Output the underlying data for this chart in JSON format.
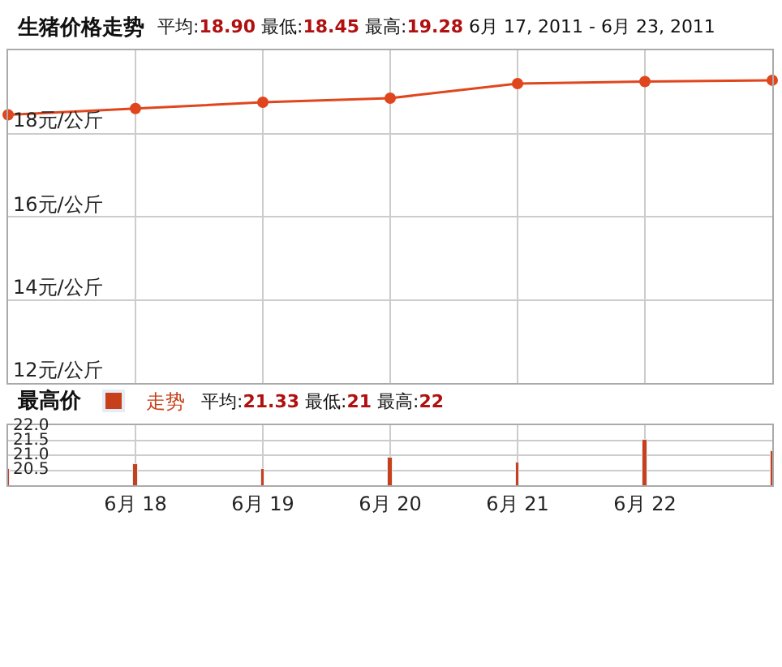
{
  "chart_data": [
    {
      "type": "line",
      "title": "生猪价格走势",
      "subtitle": "平均:18.90 最低:18.45 最高:19.28 6月 17, 2011 - 6月 23, 2011",
      "x": [
        "--06-17",
        "--06-18",
        "--06-19",
        "--06-20",
        "--06-21",
        "--06-22",
        "--06-23"
      ],
      "series": [
        {
          "color": "#e0461e",
          "values": [
            18.45,
            18.6,
            18.75,
            18.85,
            19.2,
            19.25,
            19.28
          ]
        }
      ],
      "xlim": [
        "--06-17",
        "--06-23"
      ],
      "xticks": [
        {
          "value": "--06-18",
          "label": null
        },
        {
          "value": "--06-19",
          "label": null
        },
        {
          "value": "--06-20",
          "label": null
        },
        {
          "value": "--06-21",
          "label": null
        },
        {
          "value": "--06-22",
          "label": null
        }
      ],
      "ylim": [
        12,
        20
      ],
      "yticks": [
        {
          "value": 12,
          "label": "12元/公斤"
        },
        {
          "value": 14,
          "label": "14元/公斤"
        },
        {
          "value": 16,
          "label": "16元/公斤"
        },
        {
          "value": 18,
          "label": "18元/公斤"
        }
      ],
      "tick_labels": "y",
      "grid": true,
      "marker": "circle",
      "line_style": "solid",
      "legend": false
    },
    {
      "type": "bar",
      "title": "最高价",
      "subtitle": "平均:21.33 最低:21 最高:22",
      "x": [
        "--06-17",
        "--06-18",
        "--06-19",
        "--06-20",
        "--06-21",
        "--06-22",
        "--06-23"
      ],
      "series": [
        {
          "name": "走势",
          "color": "#c8401a",
          "values": [
            20.52,
            20.7,
            20.52,
            20.93,
            20.76,
            21.54,
            21.11
          ]
        }
      ],
      "xlim": [
        "--06-17",
        "--06-23"
      ],
      "xticks": [
        {
          "value": "--06-18",
          "label": "6月 18"
        },
        {
          "value": "--06-19",
          "label": "6月 19"
        },
        {
          "value": "--06-20",
          "label": "6月 20"
        },
        {
          "value": "--06-21",
          "label": "6月 21"
        },
        {
          "value": "--06-22",
          "label": "6月 22"
        }
      ],
      "ylim": [
        20,
        22
      ],
      "yticks": [
        {
          "value": 20.5,
          "label": "20.5"
        },
        {
          "value": 21,
          "label": "21.0"
        },
        {
          "value": 21.5,
          "label": "21.5"
        },
        {
          "value": 22,
          "label": "22.0"
        }
      ],
      "grid": true,
      "legend": "top left"
    }
  ]
}
